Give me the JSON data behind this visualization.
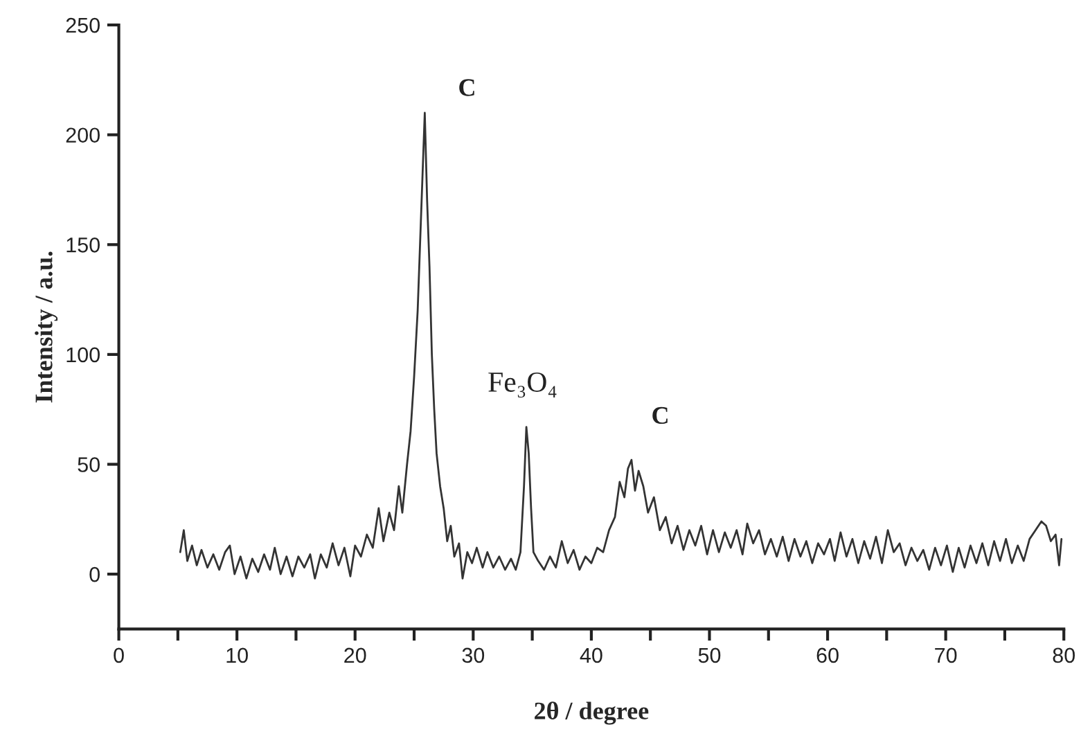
{
  "chart_data": {
    "type": "line",
    "xlabel": "2θ / degree",
    "ylabel": "Intensity / a.u.",
    "xlim": [
      0,
      80
    ],
    "ylim": [
      -25,
      250
    ],
    "xticks": [
      0,
      {
        "value": 5,
        "label": null
      },
      10,
      {
        "value": 15,
        "label": null
      },
      20,
      {
        "value": 25,
        "label": null
      },
      30,
      {
        "value": 35,
        "label": null
      },
      40,
      {
        "value": 45,
        "label": null
      },
      50,
      {
        "value": 55,
        "label": null
      },
      60,
      {
        "value": 65,
        "label": null
      },
      70,
      {
        "value": 75,
        "label": null
      },
      80
    ],
    "yticks": [
      0,
      50,
      100,
      150,
      200,
      250
    ],
    "grid": false,
    "legend": false,
    "marker": "none",
    "line_style": "solid",
    "annotations": [
      {
        "text": "C",
        "x": 25.9,
        "y": 210
      },
      {
        "text": "Fe₃O₄",
        "x": 34.5,
        "y": 67
      },
      {
        "text": "C",
        "x": 43.4,
        "y": 52
      }
    ],
    "series": [
      {
        "color": "#333333",
        "x": [
          5.2,
          5.5,
          5.8,
          6.2,
          6.6,
          7.0,
          7.5,
          8.0,
          8.5,
          9.0,
          9.4,
          9.8,
          10.3,
          10.8,
          11.3,
          11.8,
          12.3,
          12.8,
          13.2,
          13.7,
          14.2,
          14.7,
          15.2,
          15.7,
          16.2,
          16.6,
          17.1,
          17.6,
          18.1,
          18.6,
          19.1,
          19.6,
          20.0,
          20.5,
          21.0,
          21.5,
          22.0,
          22.4,
          22.9,
          23.3,
          23.7,
          24.0,
          24.4,
          24.7,
          25.0,
          25.3,
          25.5,
          25.7,
          25.9,
          26.1,
          26.3,
          26.5,
          26.7,
          26.9,
          27.2,
          27.5,
          27.8,
          28.1,
          28.4,
          28.8,
          29.1,
          29.5,
          29.9,
          30.3,
          30.8,
          31.2,
          31.7,
          32.2,
          32.7,
          33.2,
          33.6,
          34.0,
          34.3,
          34.5,
          34.7,
          34.9,
          35.1,
          35.5,
          36.0,
          36.5,
          37.0,
          37.5,
          38.0,
          38.5,
          39.0,
          39.5,
          40.0,
          40.5,
          41.0,
          41.5,
          42.0,
          42.4,
          42.8,
          43.1,
          43.4,
          43.7,
          44.0,
          44.4,
          44.8,
          45.3,
          45.8,
          46.3,
          46.8,
          47.3,
          47.8,
          48.3,
          48.8,
          49.3,
          49.8,
          50.3,
          50.8,
          51.3,
          51.8,
          52.3,
          52.8,
          53.2,
          53.7,
          54.2,
          54.7,
          55.2,
          55.7,
          56.2,
          56.7,
          57.2,
          57.7,
          58.2,
          58.7,
          59.2,
          59.7,
          60.2,
          60.6,
          61.1,
          61.6,
          62.1,
          62.6,
          63.1,
          63.6,
          64.1,
          64.6,
          65.1,
          65.6,
          66.1,
          66.6,
          67.1,
          67.6,
          68.1,
          68.6,
          69.1,
          69.6,
          70.1,
          70.6,
          71.1,
          71.6,
          72.1,
          72.6,
          73.1,
          73.6,
          74.1,
          74.6,
          75.1,
          75.6,
          76.1,
          76.6,
          77.1,
          77.6,
          78.1,
          78.5,
          78.9,
          79.3,
          79.6,
          79.8
        ],
        "values": [
          10,
          20,
          6,
          13,
          4,
          11,
          3,
          9,
          2,
          10,
          13,
          0,
          8,
          -2,
          7,
          1,
          9,
          2,
          12,
          0,
          8,
          -1,
          8,
          3,
          9,
          -2,
          9,
          3,
          14,
          4,
          12,
          -1,
          13,
          8,
          18,
          12,
          30,
          15,
          28,
          20,
          40,
          28,
          50,
          65,
          90,
          120,
          150,
          180,
          210,
          170,
          140,
          100,
          75,
          55,
          40,
          30,
          15,
          22,
          8,
          14,
          -2,
          10,
          5,
          12,
          3,
          10,
          3,
          8,
          2,
          7,
          2,
          10,
          40,
          67,
          55,
          30,
          10,
          6,
          2,
          8,
          3,
          15,
          5,
          11,
          2,
          8,
          5,
          12,
          10,
          20,
          26,
          42,
          35,
          48,
          52,
          38,
          47,
          40,
          28,
          35,
          20,
          26,
          14,
          22,
          11,
          20,
          13,
          22,
          9,
          20,
          10,
          19,
          12,
          20,
          9,
          23,
          14,
          20,
          9,
          16,
          8,
          17,
          6,
          16,
          8,
          15,
          5,
          14,
          9,
          16,
          6,
          19,
          8,
          16,
          5,
          15,
          7,
          17,
          5,
          20,
          10,
          14,
          4,
          12,
          6,
          11,
          2,
          12,
          4,
          13,
          1,
          12,
          3,
          13,
          5,
          14,
          4,
          15,
          6,
          16,
          5,
          13,
          6,
          16,
          20,
          24,
          22,
          15,
          18,
          4,
          16
        ]
      }
    ]
  }
}
